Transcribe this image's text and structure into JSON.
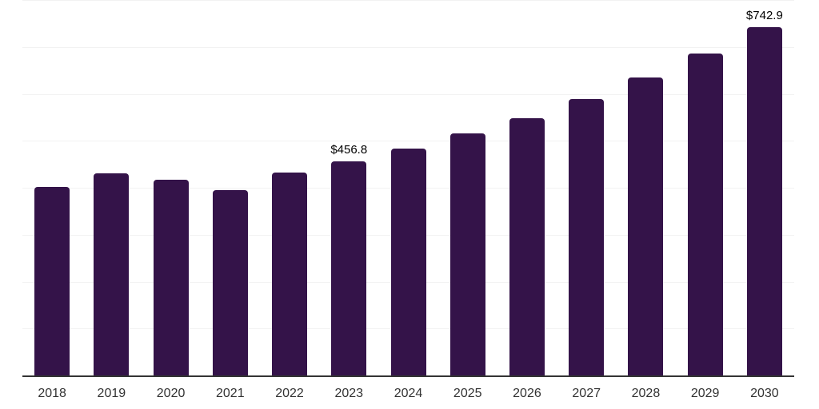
{
  "chart_data": {
    "type": "bar",
    "title": "",
    "xlabel": "",
    "ylabel": "",
    "categories": [
      "2018",
      "2019",
      "2020",
      "2021",
      "2022",
      "2023",
      "2024",
      "2025",
      "2026",
      "2027",
      "2028",
      "2029",
      "2030"
    ],
    "values": [
      402.0,
      431.4,
      416.2,
      395.7,
      433.1,
      456.8,
      483.7,
      515.3,
      548.3,
      589.1,
      635.0,
      686.0,
      742.9
    ],
    "data_labels": {
      "2023": "$456.8",
      "2030": "$742.9"
    },
    "ylim": [
      0,
      800
    ],
    "grid_step": 100,
    "grid_visible": true,
    "y_axis_labels_visible": false,
    "legend_position": "none",
    "colors": {
      "bar": "#341349",
      "grid_line": "#f2f2f2",
      "axis_line": "#333333",
      "x_tick_label": "#333333",
      "data_label": "#000000",
      "background": "#ffffff"
    }
  }
}
